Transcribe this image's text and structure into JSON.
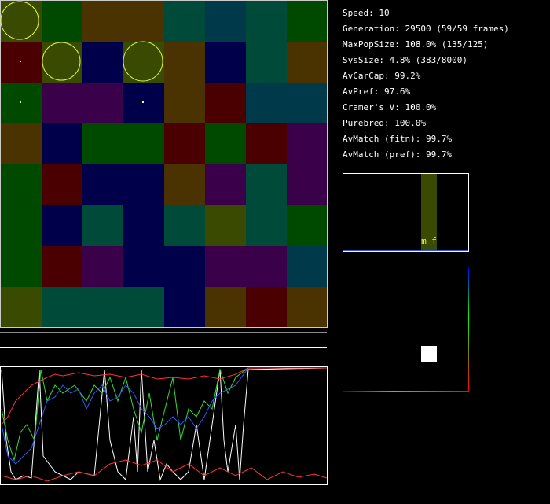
{
  "stats": [
    "Speed: 10",
    "Generation: 29500 (59/59 frames)",
    "MaxPopSize: 108.0% (135/125)",
    "SysSize: 4.8% (383/8000)",
    "AvCarCap: 99.2%",
    "AvPref: 97.6%",
    "Cramer's V: 100.0%",
    "Purebred: 100.0%",
    "AvMatch (fitn): 99.7%",
    "AvMatch (pref): 99.7%"
  ],
  "histogram": {
    "label": "m f"
  }
}
